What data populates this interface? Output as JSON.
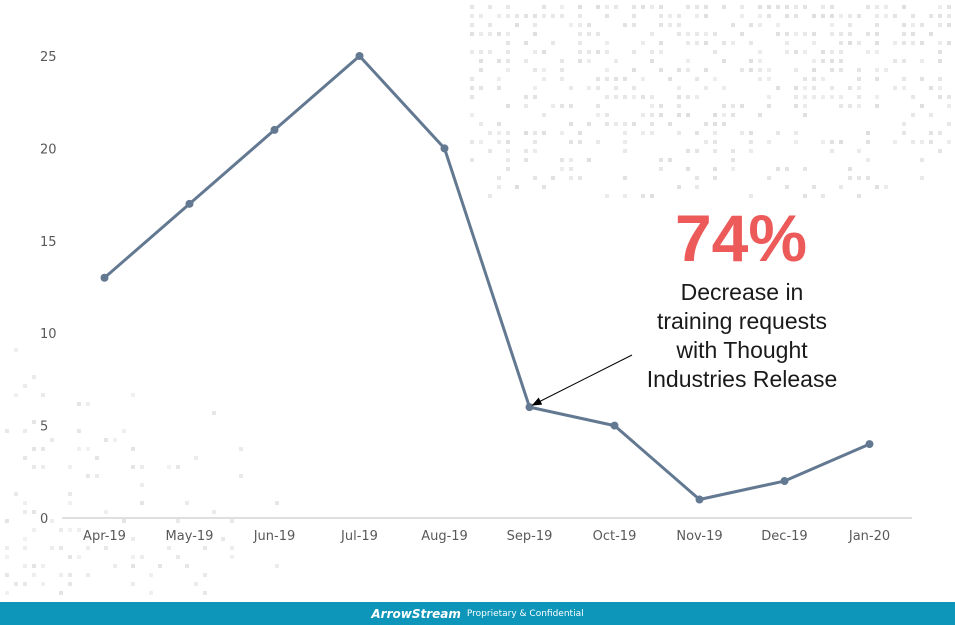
{
  "chart_data": {
    "type": "line",
    "categories": [
      "Apr-19",
      "May-19",
      "Jun-19",
      "Jul-19",
      "Aug-19",
      "Sep-19",
      "Oct-19",
      "Nov-19",
      "Dec-19",
      "Jan-20"
    ],
    "values": [
      13,
      17,
      21,
      25,
      20,
      6,
      5,
      1,
      2,
      4
    ],
    "yticks": [
      0,
      5,
      10,
      15,
      20,
      25
    ],
    "ylim": [
      0,
      25
    ],
    "title": "",
    "xlabel": "",
    "ylabel": "",
    "grid": false,
    "line_color": "#637891",
    "annotation": {
      "headline": "74%",
      "lines": [
        "Decrease in",
        "training requests",
        "with Thought",
        "Industries Release"
      ],
      "points_to": "Sep-19",
      "headline_color": "#ec5a5a"
    }
  },
  "footer": {
    "brand": "ArrowStream",
    "text": "Proprietary & Confidential",
    "color": "#0d96b9"
  }
}
